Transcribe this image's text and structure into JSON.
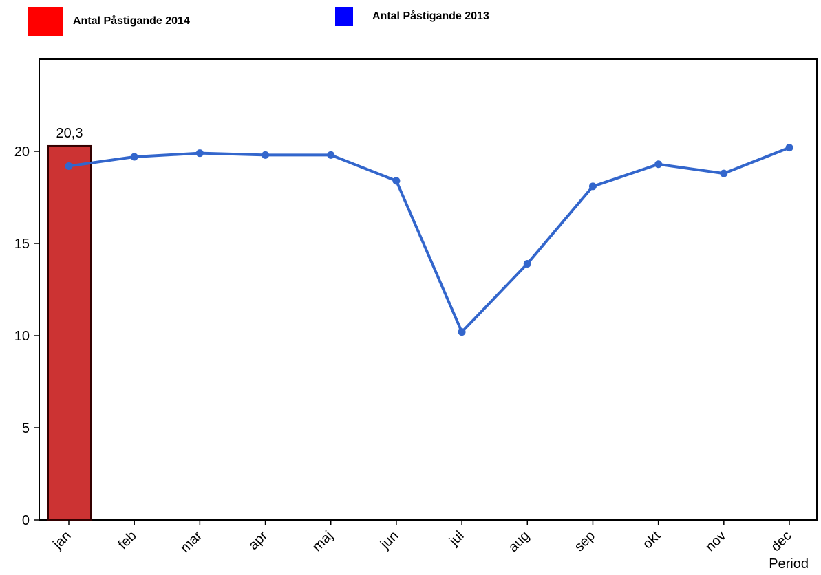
{
  "legend": {
    "series_2014": {
      "label": "Antal Påstigande 2014",
      "color": "#ff0000"
    },
    "series_2013": {
      "label": "Antal Påstigande 2013",
      "color": "#0000ff"
    }
  },
  "chart_data": {
    "type": "bar",
    "categories": [
      "jan",
      "feb",
      "mar",
      "apr",
      "maj",
      "jun",
      "jul",
      "aug",
      "sep",
      "okt",
      "nov",
      "dec"
    ],
    "series": [
      {
        "name": "Antal Påstigande 2014",
        "type": "bar",
        "color": "#cc3333",
        "values": [
          20.3,
          null,
          null,
          null,
          null,
          null,
          null,
          null,
          null,
          null,
          null,
          null
        ],
        "data_labels": [
          "20,3",
          null,
          null,
          null,
          null,
          null,
          null,
          null,
          null,
          null,
          null,
          null
        ]
      },
      {
        "name": "Antal Påstigande 2013",
        "type": "line",
        "color": "#3366cc",
        "values": [
          19.2,
          19.7,
          19.9,
          19.8,
          19.8,
          18.4,
          10.2,
          13.9,
          18.1,
          19.3,
          18.8,
          20.2
        ]
      }
    ],
    "xlabel": "Period",
    "ylabel": "",
    "ylim": [
      0,
      25
    ],
    "yticks": [
      0,
      5,
      10,
      15,
      20
    ],
    "ytick_labels": [
      "0",
      "5",
      "10",
      "15",
      "20"
    ],
    "grid": false,
    "legend_position": "top-left"
  }
}
